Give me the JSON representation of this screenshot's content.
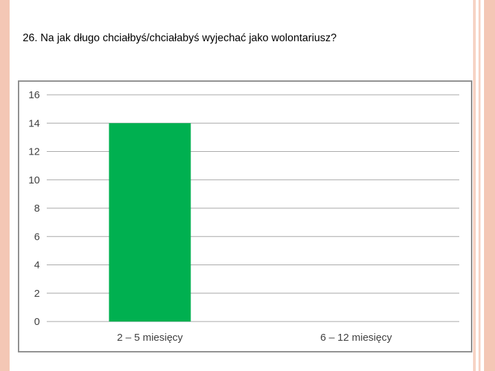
{
  "slide": {
    "title": "26. Na jak długo chciałbyś/chciałabyś wyjechać jako wolontariusz?"
  },
  "chart_data": {
    "type": "bar",
    "categories": [
      "2 – 5 miesięcy",
      "6 – 12 miesięcy"
    ],
    "values": [
      14,
      0
    ],
    "title": "",
    "xlabel": "",
    "ylabel": "",
    "ylim": [
      0,
      16
    ],
    "yticks": [
      0,
      2,
      4,
      6,
      8,
      10,
      12,
      14,
      16
    ],
    "grid": true,
    "legend": "none",
    "bar_color": "#00b050",
    "grid_color": "#a6a6a6"
  }
}
